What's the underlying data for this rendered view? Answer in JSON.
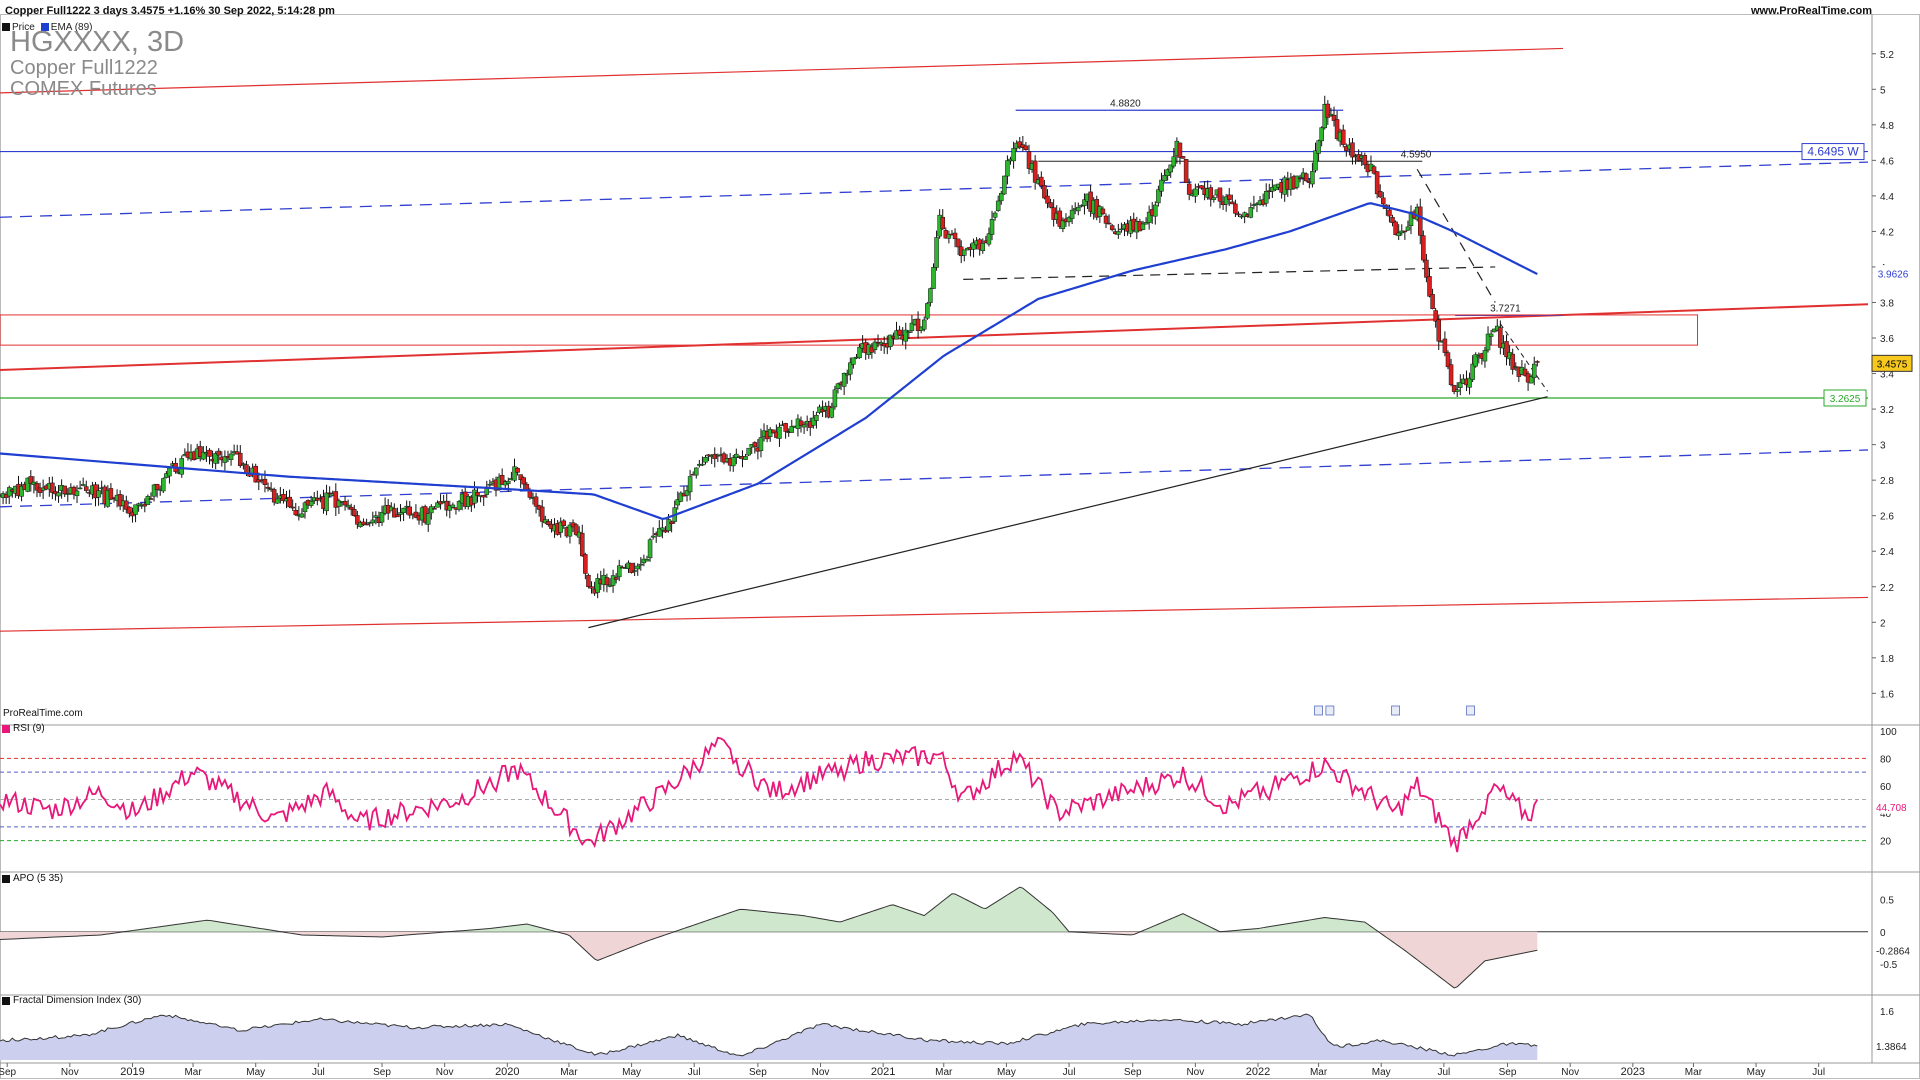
{
  "header": {
    "title": "Copper Full1222 3 days 3.4575 +1.16% 30 Sep 2022, 5:14:28 pm",
    "site": "www.ProRealTime.com"
  },
  "legend": {
    "price_label": "Price",
    "ema_label": "EMA (89)"
  },
  "instrument": {
    "symbol": "HGXXXX, 3D",
    "name": "Copper Full1222",
    "exchange": "COMEX Futures"
  },
  "watermark": "ProRealTime.com",
  "colors": {
    "up_candle": "#2db52d",
    "down_candle": "#d62020",
    "ema": "#1f3fd0",
    "red_line": "#e03030",
    "green_line": "#2aa82a",
    "blue_line": "#2f3fd0",
    "rsi": "#e8177a",
    "apo_pos": "#cfe7cc",
    "apo_neg": "#efd5d5",
    "fdi_fill": "#ccd0ee"
  },
  "chart_data": [
    {
      "type": "candlestick",
      "title": "Copper Full1222 3 days",
      "ylim": [
        1.45,
        5.3
      ],
      "y_ticks": [
        "1.6",
        "1.8",
        "2",
        "2.2",
        "2.4",
        "2.6",
        "2.8",
        "3",
        "3.2",
        "3.4",
        "3.6",
        "3.8",
        "4",
        "4.2",
        "4.4",
        "4.6",
        "4.8",
        "5",
        "5.2"
      ],
      "x_ticks": [
        "Sep",
        "Nov",
        "2019",
        "Mar",
        "May",
        "Jul",
        "Sep",
        "Nov",
        "2020",
        "Mar",
        "May",
        "Jul",
        "Sep",
        "Nov",
        "2021",
        "Mar",
        "May",
        "Jul",
        "Sep",
        "Nov",
        "2022",
        "Mar",
        "May",
        "Jul",
        "Sep",
        "Nov",
        "2023",
        "Mar",
        "May",
        "Jul"
      ],
      "x_range": [
        "2018-08-25",
        "2023-08-18"
      ],
      "close_path": [
        [
          "2018-08-25",
          2.72
        ],
        [
          "2018-09-25",
          2.78
        ],
        [
          "2018-11-01",
          2.74
        ],
        [
          "2018-12-01",
          2.72
        ],
        [
          "2019-01-03",
          2.62
        ],
        [
          "2019-02-01",
          2.82
        ],
        [
          "2019-03-01",
          2.95
        ],
        [
          "2019-04-15",
          2.92
        ],
        [
          "2019-05-20",
          2.68
        ],
        [
          "2019-06-15",
          2.63
        ],
        [
          "2019-07-15",
          2.7
        ],
        [
          "2019-08-10",
          2.58
        ],
        [
          "2019-09-10",
          2.62
        ],
        [
          "2019-10-10",
          2.6
        ],
        [
          "2019-11-10",
          2.67
        ],
        [
          "2019-12-10",
          2.72
        ],
        [
          "2020-01-10",
          2.85
        ],
        [
          "2020-01-20",
          2.75
        ],
        [
          "2020-02-05",
          2.55
        ],
        [
          "2020-03-10",
          2.5
        ],
        [
          "2020-03-20",
          2.18
        ],
        [
          "2020-04-10",
          2.25
        ],
        [
          "2020-05-10",
          2.35
        ],
        [
          "2020-06-10",
          2.6
        ],
        [
          "2020-07-10",
          2.93
        ],
        [
          "2020-08-10",
          2.9
        ],
        [
          "2020-09-10",
          3.05
        ],
        [
          "2020-10-10",
          3.1
        ],
        [
          "2020-11-10",
          3.2
        ],
        [
          "2020-12-01",
          3.5
        ],
        [
          "2021-01-15",
          3.62
        ],
        [
          "2021-02-10",
          3.7
        ],
        [
          "2021-02-25",
          4.25
        ],
        [
          "2021-03-20",
          4.05
        ],
        [
          "2021-04-15",
          4.2
        ],
        [
          "2021-05-10",
          4.75
        ],
        [
          "2021-05-25",
          4.55
        ],
        [
          "2021-06-20",
          4.25
        ],
        [
          "2021-07-15",
          4.4
        ],
        [
          "2021-08-15",
          4.2
        ],
        [
          "2021-09-15",
          4.25
        ],
        [
          "2021-10-15",
          4.7
        ],
        [
          "2021-10-25",
          4.45
        ],
        [
          "2021-11-20",
          4.4
        ],
        [
          "2021-12-20",
          4.3
        ],
        [
          "2022-01-20",
          4.45
        ],
        [
          "2022-02-20",
          4.5
        ],
        [
          "2022-03-07",
          4.9
        ],
        [
          "2022-03-25",
          4.7
        ],
        [
          "2022-04-20",
          4.55
        ],
        [
          "2022-05-15",
          4.2
        ],
        [
          "2022-06-05",
          4.3
        ],
        [
          "2022-06-20",
          3.75
        ],
        [
          "2022-07-12",
          3.25
        ],
        [
          "2022-07-25",
          3.4
        ],
        [
          "2022-08-20",
          3.65
        ],
        [
          "2022-09-05",
          3.45
        ],
        [
          "2022-09-20",
          3.38
        ],
        [
          "2022-09-30",
          3.4575
        ]
      ],
      "ema_89_path": [
        [
          "2018-08-25",
          2.95
        ],
        [
          "2019-06-01",
          2.82
        ],
        [
          "2020-01-01",
          2.75
        ],
        [
          "2020-03-25",
          2.72
        ],
        [
          "2020-06-01",
          2.58
        ],
        [
          "2020-09-01",
          2.78
        ],
        [
          "2020-12-15",
          3.15
        ],
        [
          "2021-03-01",
          3.5
        ],
        [
          "2021-06-01",
          3.82
        ],
        [
          "2021-09-01",
          3.98
        ],
        [
          "2021-12-01",
          4.1
        ],
        [
          "2022-02-01",
          4.2
        ],
        [
          "2022-04-20",
          4.36
        ],
        [
          "2022-06-01",
          4.3
        ],
        [
          "2022-07-10",
          4.2
        ],
        [
          "2022-09-30",
          3.96
        ]
      ],
      "annotations": [
        {
          "label": "4.8820",
          "value": 4.882
        },
        {
          "label": "4.5950",
          "value": 4.595
        },
        {
          "label": "3.7271",
          "value": 3.7271
        }
      ],
      "price_tags": [
        {
          "label": "4.6495 W",
          "value": 4.6495
        },
        {
          "label": "3.9626",
          "value": 3.9626
        },
        {
          "label": "3.4575",
          "value": 3.4575
        },
        {
          "label": "3.2625",
          "value": 3.2625
        }
      ]
    },
    {
      "type": "line",
      "title": "RSI (9)",
      "ylim": [
        0,
        100
      ],
      "y_ticks": [
        "20",
        "40",
        "60",
        "80",
        "100"
      ],
      "levels": [
        20,
        30,
        50,
        70,
        80
      ],
      "last_value": "44.708",
      "series_path": [
        [
          "2018-08-25",
          50
        ],
        [
          "2018-10-15",
          42
        ],
        [
          "2018-12-01",
          55
        ],
        [
          "2019-01-03",
          40
        ],
        [
          "2019-03-01",
          70
        ],
        [
          "2019-05-20",
          35
        ],
        [
          "2019-07-10",
          55
        ],
        [
          "2019-08-10",
          33
        ],
        [
          "2019-11-15",
          50
        ],
        [
          "2020-01-10",
          72
        ],
        [
          "2020-02-01",
          55
        ],
        [
          "2020-03-20",
          18
        ],
        [
          "2020-06-01",
          55
        ],
        [
          "2020-07-25",
          90
        ],
        [
          "2020-09-15",
          55
        ],
        [
          "2020-12-15",
          78
        ],
        [
          "2021-02-25",
          82
        ],
        [
          "2021-03-20",
          50
        ],
        [
          "2021-05-10",
          82
        ],
        [
          "2021-06-20",
          40
        ],
        [
          "2021-10-20",
          68
        ],
        [
          "2021-12-01",
          45
        ],
        [
          "2022-03-07",
          75
        ],
        [
          "2022-05-15",
          40
        ],
        [
          "2022-06-05",
          60
        ],
        [
          "2022-07-12",
          17
        ],
        [
          "2022-08-20",
          58
        ],
        [
          "2022-09-20",
          38
        ],
        [
          "2022-09-30",
          44.708
        ]
      ]
    },
    {
      "type": "area",
      "title": "APO (5 35)",
      "ylim": [
        -0.9,
        0.8
      ],
      "y_ticks": [
        "0.5",
        "0",
        "-0.5"
      ],
      "last_value": "-0.2864",
      "series_path": [
        [
          "2018-08-25",
          -0.12
        ],
        [
          "2018-12-01",
          -0.05
        ],
        [
          "2019-03-15",
          0.18
        ],
        [
          "2019-06-15",
          -0.05
        ],
        [
          "2019-09-01",
          -0.08
        ],
        [
          "2019-12-15",
          0.05
        ],
        [
          "2020-01-20",
          0.12
        ],
        [
          "2020-03-01",
          -0.05
        ],
        [
          "2020-03-28",
          -0.45
        ],
        [
          "2020-05-15",
          -0.15
        ],
        [
          "2020-08-15",
          0.35
        ],
        [
          "2020-10-15",
          0.25
        ],
        [
          "2020-11-20",
          0.15
        ],
        [
          "2021-01-10",
          0.42
        ],
        [
          "2021-02-10",
          0.25
        ],
        [
          "2021-03-10",
          0.6
        ],
        [
          "2021-04-10",
          0.35
        ],
        [
          "2021-05-15",
          0.7
        ],
        [
          "2021-06-15",
          0.3
        ],
        [
          "2021-07-01",
          0.0
        ],
        [
          "2021-09-01",
          -0.05
        ],
        [
          "2021-10-20",
          0.28
        ],
        [
          "2021-11-25",
          0.0
        ],
        [
          "2022-01-01",
          0.05
        ],
        [
          "2022-03-07",
          0.22
        ],
        [
          "2022-04-15",
          0.15
        ],
        [
          "2022-05-25",
          -0.3
        ],
        [
          "2022-07-12",
          -0.88
        ],
        [
          "2022-08-10",
          -0.45
        ],
        [
          "2022-09-30",
          -0.2864
        ]
      ]
    },
    {
      "type": "area",
      "title": "Fractal Dimension Index (30)",
      "ylim": [
        1.3,
        1.65
      ],
      "y_ticks": [
        "1.6",
        "1.4"
      ],
      "last_value": "1.3864",
      "series_path": [
        [
          "2018-08-25",
          1.42
        ],
        [
          "2018-11-15",
          1.45
        ],
        [
          "2019-02-01",
          1.58
        ],
        [
          "2019-04-15",
          1.48
        ],
        [
          "2019-07-01",
          1.55
        ],
        [
          "2019-10-01",
          1.5
        ],
        [
          "2020-01-01",
          1.52
        ],
        [
          "2020-03-28",
          1.33
        ],
        [
          "2020-06-15",
          1.45
        ],
        [
          "2020-08-15",
          1.32
        ],
        [
          "2020-11-01",
          1.52
        ],
        [
          "2021-02-15",
          1.42
        ],
        [
          "2021-05-01",
          1.4
        ],
        [
          "2021-07-15",
          1.52
        ],
        [
          "2021-10-01",
          1.55
        ],
        [
          "2021-12-15",
          1.52
        ],
        [
          "2022-02-20",
          1.58
        ],
        [
          "2022-03-15",
          1.38
        ],
        [
          "2022-05-01",
          1.42
        ],
        [
          "2022-07-12",
          1.33
        ],
        [
          "2022-09-01",
          1.4
        ],
        [
          "2022-09-30",
          1.3864
        ]
      ]
    }
  ]
}
